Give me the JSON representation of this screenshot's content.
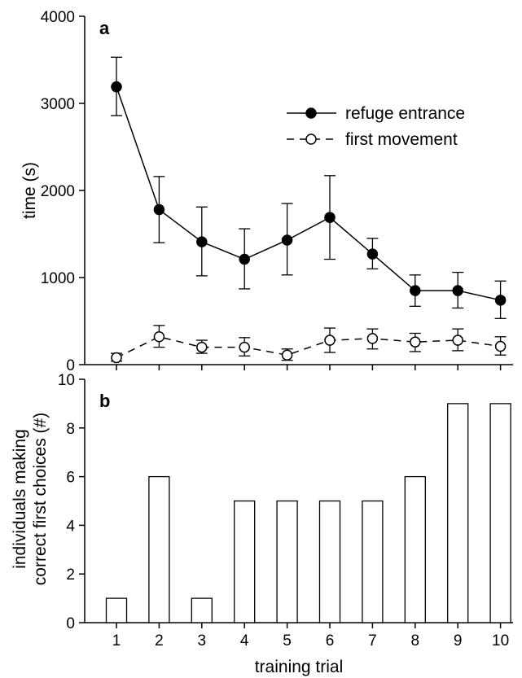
{
  "chart_data": [
    {
      "panel": "a",
      "type": "line",
      "ylabel": "time (s)",
      "xlabel": "",
      "ylim": [
        0,
        4000
      ],
      "yticks": [
        "0",
        "1000",
        "2000",
        "3000",
        "4000"
      ],
      "x": [
        1,
        2,
        3,
        4,
        5,
        6,
        7,
        8,
        9,
        10
      ],
      "legend_position": "top-right",
      "series": [
        {
          "name": "refuge entrance",
          "marker": "filled-circle",
          "line": "solid",
          "values": [
            3190,
            1780,
            1410,
            1210,
            1430,
            1690,
            1270,
            850,
            850,
            740
          ],
          "error_upper": [
            3530,
            2160,
            1810,
            1560,
            1850,
            2170,
            1450,
            1030,
            1060,
            960
          ],
          "error_lower": [
            2860,
            1400,
            1020,
            870,
            1030,
            1210,
            1100,
            670,
            650,
            530
          ]
        },
        {
          "name": "first movement",
          "marker": "open-circle",
          "line": "dashed",
          "values": [
            80,
            320,
            200,
            200,
            110,
            280,
            300,
            260,
            280,
            210
          ],
          "error_upper": [
            130,
            450,
            280,
            310,
            180,
            420,
            410,
            360,
            410,
            320
          ],
          "error_lower": [
            40,
            200,
            130,
            100,
            50,
            140,
            180,
            150,
            160,
            110
          ]
        }
      ]
    },
    {
      "panel": "b",
      "type": "bar",
      "ylabel_line1": "individuals making",
      "ylabel_line2": "correct first choices (#)",
      "xlabel": "training trial",
      "ylim": [
        0,
        10
      ],
      "yticks": [
        "0",
        "2",
        "4",
        "6",
        "8",
        "10"
      ],
      "categories": [
        "1",
        "2",
        "3",
        "4",
        "5",
        "6",
        "7",
        "8",
        "9",
        "10"
      ],
      "values": [
        1,
        6,
        1,
        5,
        5,
        5,
        5,
        6,
        9,
        9
      ]
    }
  ]
}
